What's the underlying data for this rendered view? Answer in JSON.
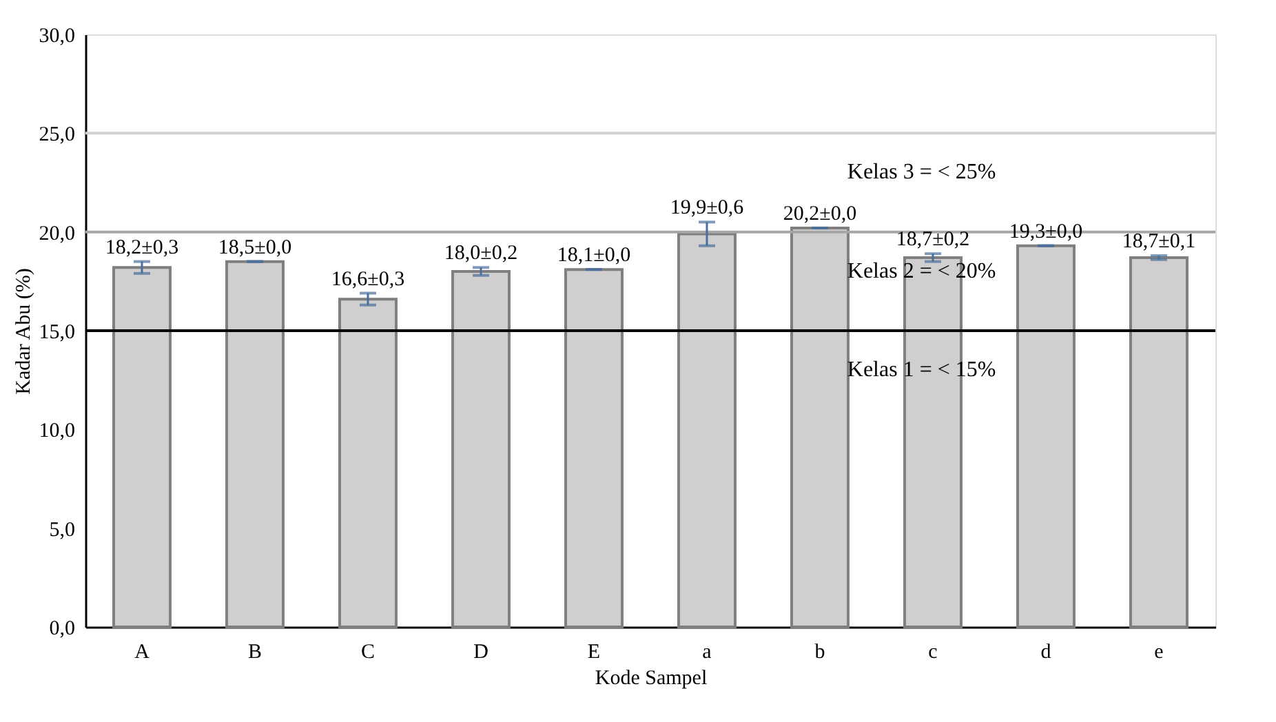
{
  "chart_data": {
    "type": "bar",
    "xlabel": "Kode Sampel",
    "ylabel": "Kadar Abu (%)",
    "categories": [
      "A",
      "B",
      "C",
      "D",
      "E",
      "a",
      "b",
      "c",
      "d",
      "e"
    ],
    "values": [
      18.2,
      18.5,
      16.6,
      18.0,
      18.1,
      19.9,
      20.2,
      18.7,
      19.3,
      18.7
    ],
    "errors": [
      0.3,
      0.0,
      0.3,
      0.2,
      0.0,
      0.6,
      0.0,
      0.2,
      0.0,
      0.1
    ],
    "value_labels": [
      "18,2±0,3",
      "18,5±0,0",
      "16,6±0,3",
      "18,0±0,2",
      "18,1±0,0",
      "19,9±0,6",
      "20,2±0,0",
      "18,7±0,2",
      "19,3±0,0",
      "18,7±0,1"
    ],
    "color": "#d0cece",
    "ylim": [
      0,
      30
    ],
    "yticks": [
      {
        "value": 0,
        "label": "0,0"
      },
      {
        "value": 5,
        "label": "5,0"
      },
      {
        "value": 10,
        "label": "10,0"
      },
      {
        "value": 15,
        "label": "15,0"
      },
      {
        "value": 20,
        "label": "20,0"
      },
      {
        "value": 25,
        "label": "25,0"
      },
      {
        "value": 30,
        "label": "30,0"
      }
    ],
    "ref_lines": [
      {
        "axis": "y",
        "value": 25,
        "label": "Kelas 3 = < 25%",
        "color": "#d0d0d0"
      },
      {
        "axis": "y",
        "value": 20,
        "label": "Kelas 2 = < 20%",
        "color": "#a6a6a6"
      },
      {
        "axis": "y",
        "value": 15,
        "label": "Kelas 1 = < 15%",
        "color": "#000000"
      }
    ],
    "grid": false
  }
}
